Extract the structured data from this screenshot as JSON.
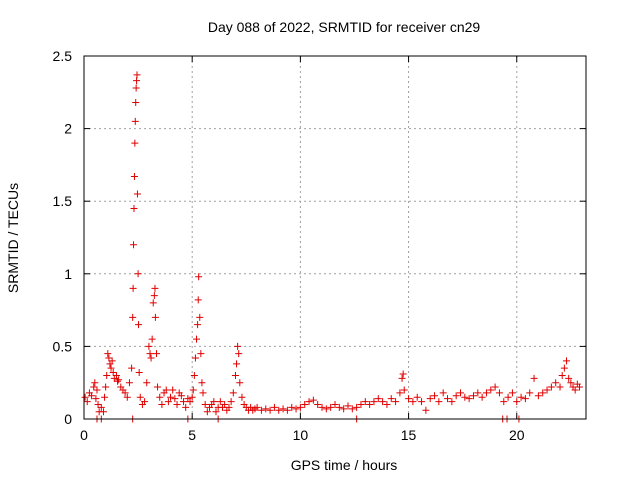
{
  "chart_data": {
    "type": "scatter",
    "title": "Day 088 of 2022, SRMTID for receiver cn29",
    "xlabel": "GPS time / hours",
    "ylabel": "SRMTID / TECUs",
    "xlim": [
      0,
      23.2
    ],
    "ylim": [
      0,
      2.5
    ],
    "xticks": [
      0,
      5,
      10,
      15,
      20
    ],
    "xtick_labels": [
      "0",
      "5",
      "10",
      "15",
      "20"
    ],
    "yticks": [
      0,
      0.5,
      1,
      1.5,
      2,
      2.5
    ],
    "ytick_labels": [
      "0",
      "0.5",
      "1",
      "1.5",
      "2",
      "2.5"
    ],
    "grid": true,
    "marker": "+",
    "color": "#e00000",
    "series": [
      {
        "name": "SRMTID",
        "points": [
          [
            0.05,
            0.15
          ],
          [
            0.15,
            0.12
          ],
          [
            0.25,
            0.18
          ],
          [
            0.35,
            0.16
          ],
          [
            0.45,
            0.22
          ],
          [
            0.5,
            0.25
          ],
          [
            0.55,
            0.14
          ],
          [
            0.6,
            0.2
          ],
          [
            0.65,
            0.1
          ],
          [
            0.7,
            0.05
          ],
          [
            0.8,
            0.08
          ],
          [
            0.9,
            0.05
          ],
          [
            0.95,
            0.15
          ],
          [
            1.0,
            0.22
          ],
          [
            1.05,
            0.3
          ],
          [
            1.1,
            0.45
          ],
          [
            1.15,
            0.42
          ],
          [
            1.2,
            0.38
          ],
          [
            1.25,
            0.35
          ],
          [
            1.3,
            0.4
          ],
          [
            1.35,
            0.32
          ],
          [
            1.4,
            0.28
          ],
          [
            1.5,
            0.3
          ],
          [
            1.55,
            0.26
          ],
          [
            1.6,
            0.27
          ],
          [
            1.7,
            0.22
          ],
          [
            1.8,
            0.2
          ],
          [
            1.9,
            0.18
          ],
          [
            2.0,
            0.15
          ],
          [
            2.1,
            0.25
          ],
          [
            2.2,
            0.35
          ],
          [
            2.25,
            0.7
          ],
          [
            2.27,
            0.9
          ],
          [
            2.29,
            1.2
          ],
          [
            2.31,
            1.45
          ],
          [
            2.33,
            1.67
          ],
          [
            2.35,
            1.9
          ],
          [
            2.37,
            2.05
          ],
          [
            2.39,
            2.18
          ],
          [
            2.41,
            2.28
          ],
          [
            2.43,
            2.33
          ],
          [
            2.45,
            2.37
          ],
          [
            2.47,
            1.55
          ],
          [
            2.5,
            1.0
          ],
          [
            2.52,
            0.65
          ],
          [
            2.55,
            0.32
          ],
          [
            2.6,
            0.15
          ],
          [
            2.7,
            0.1
          ],
          [
            2.8,
            0.12
          ],
          [
            2.9,
            0.25
          ],
          [
            3.0,
            0.5
          ],
          [
            3.05,
            0.45
          ],
          [
            3.1,
            0.42
          ],
          [
            3.15,
            0.55
          ],
          [
            3.2,
            0.8
          ],
          [
            3.25,
            0.85
          ],
          [
            3.28,
            0.9
          ],
          [
            3.3,
            0.7
          ],
          [
            3.35,
            0.45
          ],
          [
            3.4,
            0.22
          ],
          [
            3.5,
            0.15
          ],
          [
            3.6,
            0.1
          ],
          [
            3.7,
            0.18
          ],
          [
            3.8,
            0.2
          ],
          [
            3.9,
            0.12
          ],
          [
            4.0,
            0.15
          ],
          [
            4.1,
            0.2
          ],
          [
            4.2,
            0.14
          ],
          [
            4.3,
            0.1
          ],
          [
            4.4,
            0.18
          ],
          [
            4.5,
            0.16
          ],
          [
            4.6,
            0.12
          ],
          [
            4.7,
            0.08
          ],
          [
            4.8,
            0.14
          ],
          [
            4.9,
            0.12
          ],
          [
            5.0,
            0.15
          ],
          [
            5.05,
            0.2
          ],
          [
            5.1,
            0.3
          ],
          [
            5.15,
            0.42
          ],
          [
            5.2,
            0.55
          ],
          [
            5.25,
            0.65
          ],
          [
            5.28,
            0.82
          ],
          [
            5.3,
            0.98
          ],
          [
            5.35,
            0.7
          ],
          [
            5.4,
            0.45
          ],
          [
            5.45,
            0.25
          ],
          [
            5.5,
            0.18
          ],
          [
            5.6,
            0.1
          ],
          [
            5.7,
            0.05
          ],
          [
            5.8,
            0.08
          ],
          [
            5.9,
            0.1
          ],
          [
            6.0,
            0.12
          ],
          [
            6.1,
            0.05
          ],
          [
            6.2,
            0.08
          ],
          [
            6.3,
            0.12
          ],
          [
            6.4,
            0.08
          ],
          [
            6.5,
            0.1
          ],
          [
            6.6,
            0.06
          ],
          [
            6.7,
            0.08
          ],
          [
            6.8,
            0.12
          ],
          [
            6.9,
            0.18
          ],
          [
            7.0,
            0.3
          ],
          [
            7.05,
            0.38
          ],
          [
            7.1,
            0.5
          ],
          [
            7.15,
            0.45
          ],
          [
            7.2,
            0.25
          ],
          [
            7.3,
            0.15
          ],
          [
            7.4,
            0.1
          ],
          [
            7.5,
            0.08
          ],
          [
            7.6,
            0.06
          ],
          [
            7.7,
            0.08
          ],
          [
            7.8,
            0.06
          ],
          [
            7.9,
            0.07
          ],
          [
            8.0,
            0.08
          ],
          [
            8.2,
            0.06
          ],
          [
            8.4,
            0.07
          ],
          [
            8.6,
            0.06
          ],
          [
            8.8,
            0.08
          ],
          [
            9.0,
            0.06
          ],
          [
            9.2,
            0.07
          ],
          [
            9.4,
            0.06
          ],
          [
            9.6,
            0.08
          ],
          [
            9.8,
            0.07
          ],
          [
            10.0,
            0.08
          ],
          [
            10.2,
            0.1
          ],
          [
            10.4,
            0.12
          ],
          [
            10.6,
            0.13
          ],
          [
            10.8,
            0.1
          ],
          [
            11.0,
            0.08
          ],
          [
            11.2,
            0.07
          ],
          [
            11.4,
            0.08
          ],
          [
            11.6,
            0.1
          ],
          [
            11.8,
            0.08
          ],
          [
            12.0,
            0.07
          ],
          [
            12.2,
            0.09
          ],
          [
            12.4,
            0.07
          ],
          [
            12.6,
            0.08
          ],
          [
            12.8,
            0.1
          ],
          [
            13.0,
            0.12
          ],
          [
            13.2,
            0.1
          ],
          [
            13.4,
            0.12
          ],
          [
            13.6,
            0.14
          ],
          [
            13.8,
            0.12
          ],
          [
            14.0,
            0.1
          ],
          [
            14.2,
            0.14
          ],
          [
            14.4,
            0.12
          ],
          [
            14.6,
            0.18
          ],
          [
            14.7,
            0.28
          ],
          [
            14.75,
            0.31
          ],
          [
            14.8,
            0.2
          ],
          [
            15.0,
            0.14
          ],
          [
            15.2,
            0.12
          ],
          [
            15.4,
            0.15
          ],
          [
            15.6,
            0.12
          ],
          [
            15.8,
            0.06
          ],
          [
            16.0,
            0.14
          ],
          [
            16.2,
            0.16
          ],
          [
            16.4,
            0.12
          ],
          [
            16.6,
            0.18
          ],
          [
            16.8,
            0.14
          ],
          [
            17.0,
            0.12
          ],
          [
            17.2,
            0.16
          ],
          [
            17.4,
            0.18
          ],
          [
            17.6,
            0.15
          ],
          [
            17.8,
            0.14
          ],
          [
            18.0,
            0.16
          ],
          [
            18.2,
            0.18
          ],
          [
            18.4,
            0.15
          ],
          [
            18.6,
            0.18
          ],
          [
            18.8,
            0.2
          ],
          [
            19.0,
            0.22
          ],
          [
            19.2,
            0.18
          ],
          [
            19.4,
            0.12
          ],
          [
            19.6,
            0.15
          ],
          [
            19.8,
            0.18
          ],
          [
            20.0,
            0.12
          ],
          [
            20.2,
            0.15
          ],
          [
            20.4,
            0.14
          ],
          [
            20.6,
            0.18
          ],
          [
            20.8,
            0.28
          ],
          [
            21.0,
            0.16
          ],
          [
            21.2,
            0.18
          ],
          [
            21.4,
            0.2
          ],
          [
            21.6,
            0.22
          ],
          [
            21.8,
            0.25
          ],
          [
            22.0,
            0.22
          ],
          [
            22.1,
            0.3
          ],
          [
            22.2,
            0.35
          ],
          [
            22.3,
            0.4
          ],
          [
            22.4,
            0.28
          ],
          [
            22.5,
            0.25
          ],
          [
            22.6,
            0.22
          ],
          [
            22.7,
            0.2
          ],
          [
            22.8,
            0.24
          ],
          [
            22.9,
            0.22
          ],
          [
            0.6,
            0.0
          ],
          [
            0.8,
            0.0
          ],
          [
            2.25,
            0.0
          ],
          [
            4.8,
            0.0
          ],
          [
            6.2,
            0.0
          ],
          [
            12.6,
            0.0
          ],
          [
            19.35,
            0.0
          ],
          [
            19.55,
            0.0
          ],
          [
            20.1,
            0.0
          ]
        ]
      }
    ]
  }
}
